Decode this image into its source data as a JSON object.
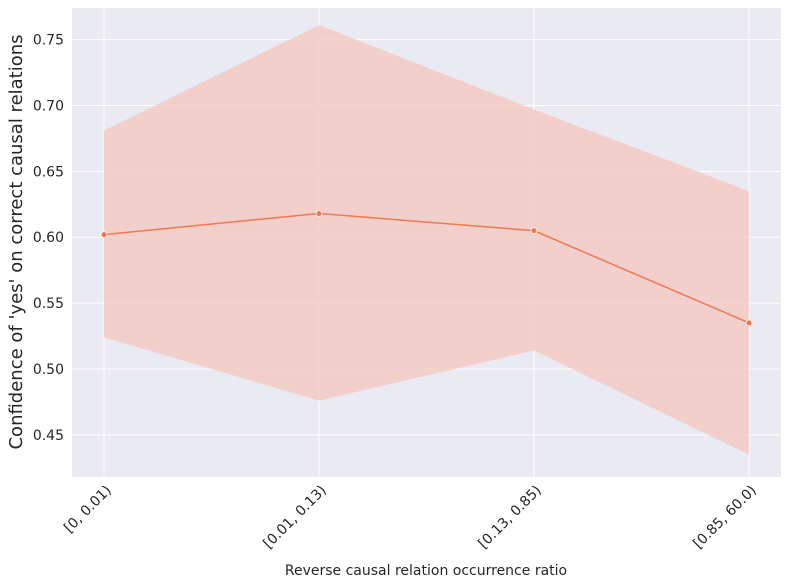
{
  "chart_data": {
    "type": "line",
    "xlabel": "Reverse causal relation occurrence ratio",
    "ylabel": "Confidence of 'yes' on correct causal relations",
    "categories": [
      "[0, 0.01)",
      "[0.01, 0.13)",
      "[0.13, 0.85)",
      "[0.85, 60.0)"
    ],
    "series": [
      {
        "values": [
          0.602,
          0.618,
          0.605,
          0.535
        ],
        "lower": [
          0.524,
          0.476,
          0.514,
          0.435
        ],
        "upper": [
          0.681,
          0.761,
          0.697,
          0.635
        ]
      }
    ],
    "yticks": [
      "0.45",
      "0.50",
      "0.55",
      "0.60",
      "0.65",
      "0.70",
      "0.75"
    ],
    "ylim": [
      0.418,
      0.774
    ],
    "grid": true,
    "colors": {
      "background": "#eaeaf2",
      "grid": "#ffffff",
      "line": "#f07850",
      "band": "#f4c5bd"
    }
  }
}
